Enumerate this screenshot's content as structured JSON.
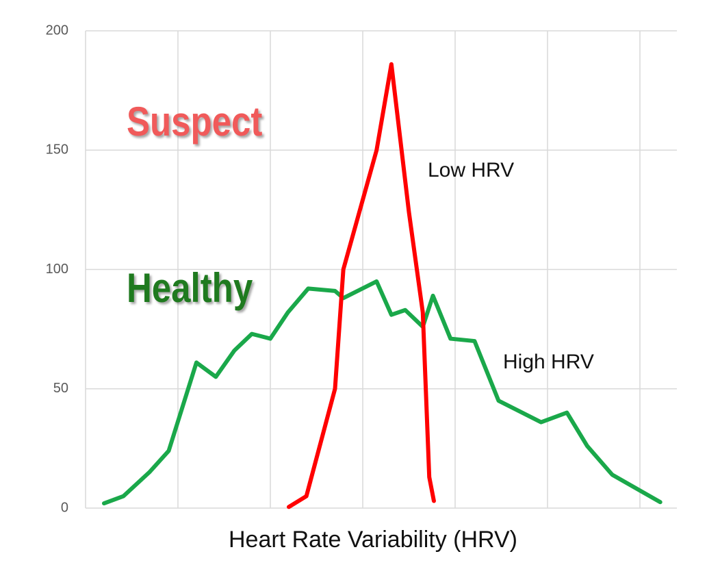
{
  "chart_data": {
    "type": "line",
    "xlabel": "Heart Rate Variability (HRV)",
    "xlim": [
      0,
      6.4
    ],
    "xticks": [
      0,
      1,
      2,
      3,
      4,
      5,
      6
    ],
    "ylim": [
      0,
      200
    ],
    "yticks": [
      0,
      50,
      100,
      150,
      200
    ],
    "grid": true,
    "series": [
      {
        "name": "Healthy",
        "color": "#1aa84a",
        "x": [
          0.2,
          0.41,
          0.69,
          0.9,
          1.2,
          1.41,
          1.61,
          1.8,
          2.0,
          2.19,
          2.41,
          2.7,
          2.79,
          3.15,
          3.31,
          3.46,
          3.65,
          3.76,
          3.95,
          4.21,
          4.47,
          4.93,
          5.21,
          5.43,
          5.7,
          6.22
        ],
        "values": [
          2,
          5,
          15,
          24,
          61,
          55,
          66,
          73,
          71,
          82,
          92,
          91,
          88,
          95,
          81,
          83,
          76,
          89,
          71,
          70,
          45,
          36,
          40,
          26,
          14,
          2.5
        ]
      },
      {
        "name": "Suspect",
        "color": "#ff0000",
        "x": [
          2.2,
          2.39,
          2.7,
          2.79,
          3.15,
          3.31,
          3.5,
          3.65,
          3.72,
          3.77
        ],
        "values": [
          0.5,
          5,
          50,
          100,
          150,
          186,
          124,
          82,
          13,
          3
        ]
      }
    ],
    "annotations": [
      "Low HRV",
      "High HRV"
    ]
  }
}
